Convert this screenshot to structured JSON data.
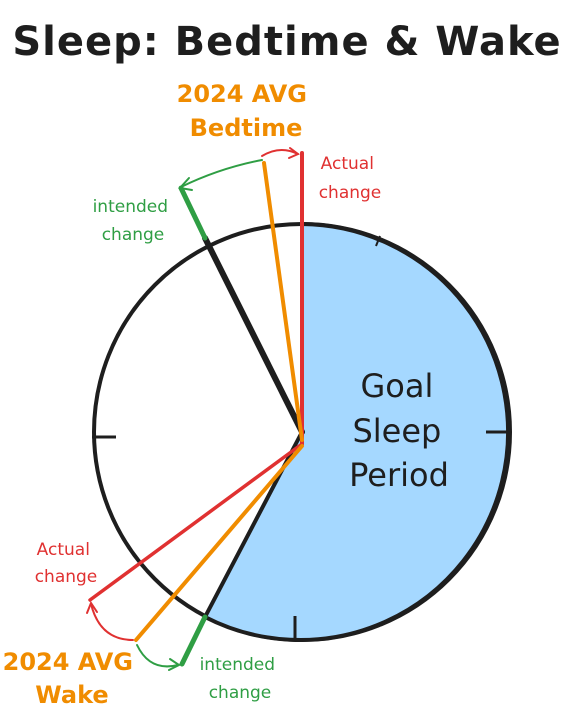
{
  "title": "Sleep: Bedtime & Wake",
  "center_label": [
    "Goal",
    "Sleep",
    "Period"
  ],
  "bedtime": {
    "avg_label": [
      "2024 AVG",
      "Bedtime"
    ],
    "actual_label": [
      "Actual",
      "change"
    ],
    "intended_label": [
      "intended",
      "change"
    ]
  },
  "wake": {
    "avg_label": [
      "2024 AVG",
      "Wake"
    ],
    "actual_label": [
      "Actual",
      "change"
    ],
    "intended_label": [
      "intended",
      "change"
    ]
  },
  "colors": {
    "goal_fill": "#a5d8ff",
    "outline": "#1e1e1e",
    "avg": "#f08c00",
    "actual": "#e03131",
    "intended": "#2f9e44"
  }
}
